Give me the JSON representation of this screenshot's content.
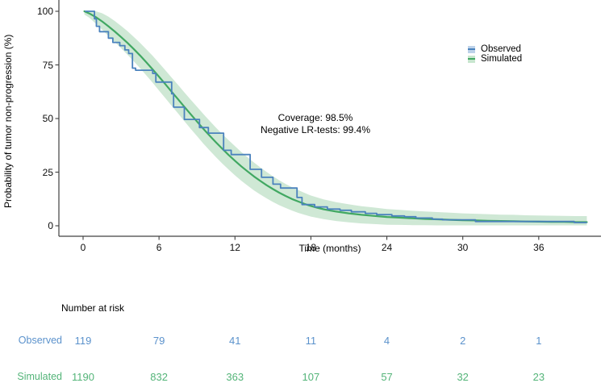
{
  "page": {
    "background": "#ffffff"
  },
  "chart_data": {
    "type": "line",
    "title": "",
    "xlabel": "Time (months)",
    "ylabel": "Probability of tumor non-progression (%)",
    "xticks": [
      0,
      6,
      12,
      18,
      24,
      30,
      36
    ],
    "yticks": [
      0,
      25,
      50,
      75,
      100
    ],
    "xlim": [
      -1.9,
      40.9
    ],
    "ylim": [
      0,
      105
    ],
    "grid": "off",
    "annotation": {
      "line1": "Coverage: 98.5%",
      "line2": "Negative LR-tests: 99.4%"
    },
    "legend": {
      "position": "top-right",
      "entries": [
        {
          "label": "Observed",
          "line_color": "#4a82bd",
          "band_color": "#bdd2e9"
        },
        {
          "label": "Simulated",
          "line_color": "#41a862",
          "band_color": "#c8e6cf"
        }
      ]
    },
    "series": [
      {
        "name": "Observed",
        "type": "step",
        "color": "#4a82bd",
        "points": [
          [
            0.15,
            100
          ],
          [
            0.9,
            96.5
          ],
          [
            1.05,
            93
          ],
          [
            1.3,
            90.5
          ],
          [
            2.0,
            87.5
          ],
          [
            2.35,
            85.5
          ],
          [
            2.9,
            84
          ],
          [
            3.3,
            82
          ],
          [
            3.6,
            80.3
          ],
          [
            3.9,
            73.5
          ],
          [
            4.15,
            72.5
          ],
          [
            5.5,
            71
          ],
          [
            5.75,
            67
          ],
          [
            7.0,
            61.5
          ],
          [
            7.15,
            55.3
          ],
          [
            8.0,
            49.6
          ],
          [
            9.2,
            45.8
          ],
          [
            9.9,
            43.2
          ],
          [
            11.1,
            35.2
          ],
          [
            11.7,
            33.2
          ],
          [
            13.2,
            26.3
          ],
          [
            14.1,
            22.6
          ],
          [
            15.0,
            19.4
          ],
          [
            15.6,
            17.6
          ],
          [
            16.9,
            13.2
          ],
          [
            17.3,
            9.9
          ],
          [
            18.3,
            8.8
          ],
          [
            19.3,
            7.8
          ],
          [
            20.3,
            7.2
          ],
          [
            21.2,
            6.5
          ],
          [
            22.3,
            5.8
          ],
          [
            23.2,
            5.2
          ],
          [
            24.4,
            4.6
          ],
          [
            25.4,
            4.2
          ],
          [
            26.3,
            3.6
          ],
          [
            27.6,
            3.1
          ],
          [
            28.4,
            2.8
          ],
          [
            31.0,
            2.0
          ],
          [
            38.8,
            1.5
          ],
          [
            39.8,
            1.5
          ]
        ]
      },
      {
        "name": "Simulated",
        "type": "smooth",
        "color": "#41a862",
        "points": [
          [
            0.1,
            100
          ],
          [
            0.5,
            99
          ],
          [
            1,
            97.3
          ],
          [
            1.5,
            95.3
          ],
          [
            2,
            93
          ],
          [
            2.5,
            90.6
          ],
          [
            3,
            88
          ],
          [
            3.5,
            85.3
          ],
          [
            4,
            82.4
          ],
          [
            4.5,
            79.4
          ],
          [
            5,
            76.2
          ],
          [
            5.5,
            72.9
          ],
          [
            6,
            69.5
          ],
          [
            6.5,
            66
          ],
          [
            7,
            62.5
          ],
          [
            7.5,
            59
          ],
          [
            8,
            55.5
          ],
          [
            8.5,
            52
          ],
          [
            9,
            48.6
          ],
          [
            9.5,
            45.2
          ],
          [
            10,
            42
          ],
          [
            10.5,
            38.9
          ],
          [
            11,
            35.9
          ],
          [
            11.5,
            33
          ],
          [
            12,
            30.3
          ],
          [
            12.5,
            27.7
          ],
          [
            13,
            25.3
          ],
          [
            13.5,
            23
          ],
          [
            14,
            20.9
          ],
          [
            14.5,
            18.9
          ],
          [
            15,
            17.1
          ],
          [
            15.5,
            15.4
          ],
          [
            16,
            13.9
          ],
          [
            16.5,
            12.5
          ],
          [
            17,
            11.3
          ],
          [
            17.5,
            10.2
          ],
          [
            18,
            9.2
          ],
          [
            18.5,
            8.4
          ],
          [
            19,
            7.7
          ],
          [
            19.5,
            7.1
          ],
          [
            20,
            6.6
          ],
          [
            21,
            5.8
          ],
          [
            22,
            5.1
          ],
          [
            23,
            4.6
          ],
          [
            24,
            4.1
          ],
          [
            25,
            3.8
          ],
          [
            26,
            3.5
          ],
          [
            27,
            3.2
          ],
          [
            28,
            3.0
          ],
          [
            29,
            2.8
          ],
          [
            30,
            2.6
          ],
          [
            31,
            2.5
          ],
          [
            32,
            2.3
          ],
          [
            33,
            2.2
          ],
          [
            34,
            2.1
          ],
          [
            35,
            2.0
          ],
          [
            36,
            1.9
          ],
          [
            37,
            1.8
          ],
          [
            38,
            1.8
          ],
          [
            39,
            1.7
          ],
          [
            39.8,
            1.7
          ]
        ],
        "band": {
          "color": "#cfe8d5",
          "points": [
            [
              0.1,
              98.5,
              100
            ],
            [
              0.5,
              97,
              100
            ],
            [
              1,
              94.3,
              100
            ],
            [
              1.5,
              91.5,
              99.1
            ],
            [
              2,
              88.5,
              97.5
            ],
            [
              2.5,
              85.7,
              95.5
            ],
            [
              3,
              82.8,
              93.2
            ],
            [
              3.5,
              79.8,
              90.8
            ],
            [
              4,
              76.7,
              88.1
            ],
            [
              4.5,
              73.5,
              85.3
            ],
            [
              5,
              70.1,
              82.3
            ],
            [
              5.5,
              66.7,
              79.2
            ],
            [
              6,
              63.1,
              75.9
            ],
            [
              6.5,
              59.5,
              72.5
            ],
            [
              7,
              55.9,
              69.1
            ],
            [
              7.5,
              52.4,
              65.7
            ],
            [
              8,
              48.8,
              62.2
            ],
            [
              8.5,
              45.2,
              58.8
            ],
            [
              9,
              41.8,
              55.5
            ],
            [
              9.5,
              38.3,
              52.1
            ],
            [
              10,
              35.1,
              48.9
            ],
            [
              10.5,
              32,
              45.8
            ],
            [
              11,
              29,
              42.8
            ],
            [
              11.5,
              26.2,
              39.9
            ],
            [
              12,
              23.5,
              37.1
            ],
            [
              12.5,
              21,
              34.4
            ],
            [
              13,
              18.7,
              31.9
            ],
            [
              13.5,
              16.5,
              29.5
            ],
            [
              14,
              14.6,
              27.2
            ],
            [
              14.5,
              12.8,
              25.1
            ],
            [
              15,
              11.1,
              23.1
            ],
            [
              15.5,
              9.6,
              21.2
            ],
            [
              16,
              8.3,
              19.5
            ],
            [
              16.5,
              7.1,
              18
            ],
            [
              17,
              6,
              16.6
            ],
            [
              17.5,
              5.1,
              15.3
            ],
            [
              18,
              4.3,
              14.1
            ],
            [
              19,
              3.1,
              12.3
            ],
            [
              20,
              2.2,
              11
            ],
            [
              21,
              1.6,
              10
            ],
            [
              22,
              1.1,
              9.1
            ],
            [
              23,
              0.8,
              8.5
            ],
            [
              24,
              0.5,
              7.8
            ],
            [
              25,
              0.4,
              7.4
            ],
            [
              26,
              0.3,
              7
            ],
            [
              27,
              0.25,
              6.7
            ],
            [
              28,
              0.2,
              6.4
            ],
            [
              29,
              0.2,
              6.1
            ],
            [
              30,
              0.2,
              5.8
            ],
            [
              31,
              0.2,
              5.6
            ],
            [
              32,
              0.2,
              5.4
            ],
            [
              33,
              0.2,
              5.2
            ],
            [
              34,
              0.2,
              5.1
            ],
            [
              35,
              0.2,
              4.9
            ],
            [
              36,
              0.2,
              4.8
            ],
            [
              37,
              0.2,
              4.7
            ],
            [
              38,
              0.2,
              4.6
            ],
            [
              39,
              0.2,
              4.5
            ],
            [
              39.8,
              0.2,
              4.5
            ]
          ]
        }
      }
    ],
    "risk_table": {
      "title": "Number at risk",
      "times": [
        0,
        6,
        12,
        18,
        24,
        30,
        36
      ],
      "rows": [
        {
          "label": "Observed",
          "color": "#5b92cc",
          "values": [
            "119",
            "79",
            "41",
            "11",
            "4",
            "2",
            "1"
          ]
        },
        {
          "label": "Simulated",
          "color": "#53b478",
          "values": [
            "1190",
            "832",
            "363",
            "107",
            "57",
            "32",
            "23"
          ]
        }
      ]
    },
    "axis_color": "#404040"
  }
}
